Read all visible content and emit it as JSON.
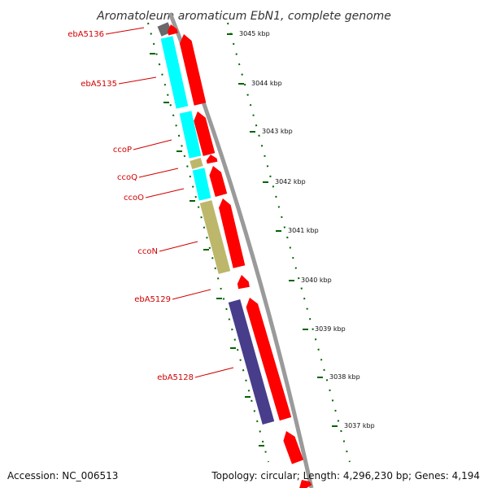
{
  "title": "Aromatoleum aromaticum EbN1, complete genome",
  "footer": {
    "accession": "Accession: NC_006513",
    "summary": "Topology: circular; Length: 4,296,230 bp; Genes: 4,194"
  },
  "colors": {
    "backbone": "#8a8a8a",
    "cds_forward": "#ff0000",
    "gene_red": "#ff0000",
    "gene_cyan": "#00ffff",
    "gene_khaki": "#bdb76b",
    "gene_navy": "#483d8b",
    "gene_gray": "#696969",
    "tick_green": "#006400",
    "label_red": "#d10000"
  },
  "kbp_ticks": [
    {
      "label": "3045 kbp"
    },
    {
      "label": "3044 kbp"
    },
    {
      "label": "3043 kbp"
    },
    {
      "label": "3042 kbp"
    },
    {
      "label": "3041 kbp"
    },
    {
      "label": "3040 kbp"
    },
    {
      "label": "3039 kbp"
    },
    {
      "label": "3038 kbp"
    },
    {
      "label": "3037 kbp"
    }
  ],
  "gene_labels": [
    {
      "name": "ebA5136"
    },
    {
      "name": "ebA5135"
    },
    {
      "name": "ccoP"
    },
    {
      "name": "ccoQ"
    },
    {
      "name": "ccoO"
    },
    {
      "name": "ccoN"
    },
    {
      "name": "ebA5129"
    },
    {
      "name": "ebA5128"
    }
  ]
}
